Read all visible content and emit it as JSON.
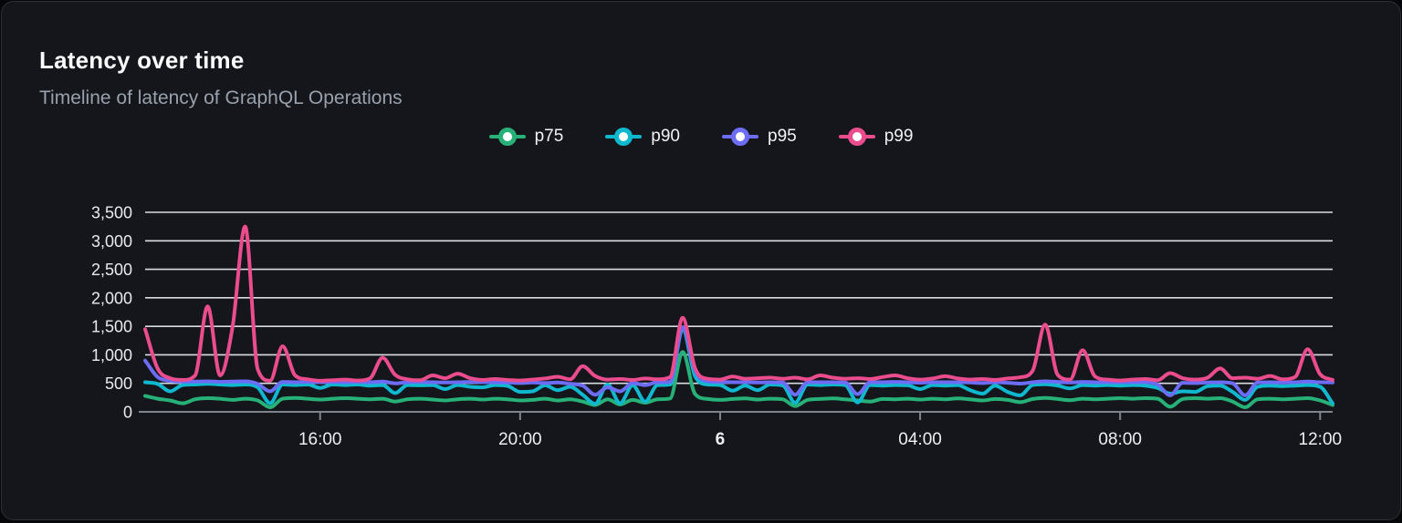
{
  "card": {
    "title": "Latency over time",
    "subtitle": "Timeline of latency of GraphQL Operations"
  },
  "chart_data": {
    "type": "line",
    "title": "Latency over time",
    "subtitle": "Timeline of latency of GraphQL Operations",
    "legend_position": "top",
    "grid": "horizontal",
    "x_start": "12:30",
    "x_interval_minutes": 15,
    "y_axis": {
      "min": 0,
      "max": 3500,
      "step": 500,
      "labels": [
        "0",
        "500",
        "1,000",
        "1,500",
        "2,000",
        "2,500",
        "3,000",
        "3,500"
      ]
    },
    "x_axis": {
      "ticks": [
        {
          "label": "16:00",
          "index": 14,
          "bold": false
        },
        {
          "label": "20:00",
          "index": 30,
          "bold": false
        },
        {
          "label": "6",
          "index": 46,
          "bold": true
        },
        {
          "label": "04:00",
          "index": 62,
          "bold": false
        },
        {
          "label": "08:00",
          "index": 78,
          "bold": false
        },
        {
          "label": "12:00",
          "index": 94,
          "bold": false
        }
      ]
    },
    "series": [
      {
        "name": "p75",
        "color": "#27b077",
        "values": [
          280,
          230,
          200,
          150,
          220,
          240,
          230,
          210,
          230,
          200,
          80,
          230,
          245,
          230,
          215,
          230,
          240,
          230,
          220,
          230,
          180,
          220,
          230,
          215,
          200,
          220,
          230,
          215,
          230,
          220,
          200,
          210,
          230,
          200,
          220,
          180,
          120,
          220,
          130,
          210,
          160,
          220,
          235,
          1050,
          310,
          225,
          210,
          225,
          235,
          215,
          230,
          220,
          100,
          210,
          225,
          235,
          220,
          200,
          180,
          225,
          220,
          230,
          215,
          230,
          220,
          235,
          220,
          200,
          225,
          210,
          170,
          225,
          245,
          225,
          205,
          230,
          220,
          230,
          240,
          230,
          240,
          230,
          90,
          225,
          240,
          230,
          240,
          180,
          80,
          220,
          230,
          220,
          230,
          240,
          200,
          120
        ]
      },
      {
        "name": "p90",
        "color": "#0fb8ce",
        "values": [
          520,
          490,
          360,
          470,
          480,
          490,
          480,
          470,
          480,
          430,
          150,
          480,
          470,
          480,
          420,
          480,
          470,
          480,
          460,
          470,
          330,
          470,
          465,
          470,
          400,
          470,
          440,
          430,
          470,
          455,
          350,
          360,
          465,
          380,
          440,
          300,
          140,
          480,
          150,
          465,
          180,
          470,
          480,
          1450,
          620,
          480,
          470,
          370,
          460,
          380,
          480,
          465,
          160,
          480,
          470,
          480,
          470,
          165,
          470,
          460,
          470,
          465,
          400,
          470,
          460,
          470,
          380,
          320,
          460,
          350,
          290,
          470,
          485,
          460,
          410,
          470,
          460,
          470,
          460,
          470,
          460,
          420,
          320,
          360,
          350,
          450,
          460,
          350,
          210,
          440,
          460,
          450,
          460,
          470,
          440,
          150
        ]
      },
      {
        "name": "p95",
        "color": "#6c6cf5",
        "values": [
          900,
          610,
          545,
          530,
          530,
          535,
          525,
          530,
          535,
          490,
          360,
          525,
          520,
          525,
          520,
          525,
          520,
          525,
          520,
          530,
          500,
          520,
          525,
          520,
          515,
          520,
          525,
          520,
          520,
          515,
          505,
          515,
          505,
          515,
          490,
          460,
          300,
          430,
          360,
          505,
          470,
          520,
          525,
          1480,
          720,
          535,
          525,
          520,
          520,
          515,
          520,
          515,
          300,
          520,
          520,
          520,
          515,
          310,
          520,
          520,
          525,
          520,
          510,
          520,
          520,
          520,
          515,
          505,
          520,
          510,
          495,
          520,
          535,
          525,
          515,
          525,
          520,
          520,
          520,
          520,
          520,
          480,
          290,
          510,
          505,
          515,
          520,
          500,
          290,
          515,
          520,
          515,
          520,
          530,
          520,
          515
        ]
      },
      {
        "name": "p99",
        "color": "#ea4c8d",
        "values": [
          1450,
          760,
          590,
          560,
          640,
          1850,
          640,
          1500,
          3250,
          750,
          545,
          1150,
          640,
          570,
          545,
          555,
          565,
          550,
          590,
          950,
          650,
          570,
          555,
          640,
          590,
          670,
          590,
          560,
          575,
          560,
          550,
          565,
          585,
          615,
          570,
          800,
          630,
          565,
          575,
          560,
          585,
          570,
          610,
          1650,
          760,
          580,
          565,
          620,
          580,
          590,
          600,
          580,
          600,
          570,
          640,
          600,
          580,
          590,
          575,
          610,
          640,
          590,
          565,
          585,
          625,
          585,
          565,
          575,
          560,
          585,
          605,
          720,
          1530,
          650,
          565,
          1080,
          620,
          565,
          550,
          565,
          575,
          555,
          680,
          590,
          565,
          600,
          760,
          590,
          600,
          580,
          630,
          570,
          610,
          1100,
          660,
          560
        ]
      }
    ]
  }
}
